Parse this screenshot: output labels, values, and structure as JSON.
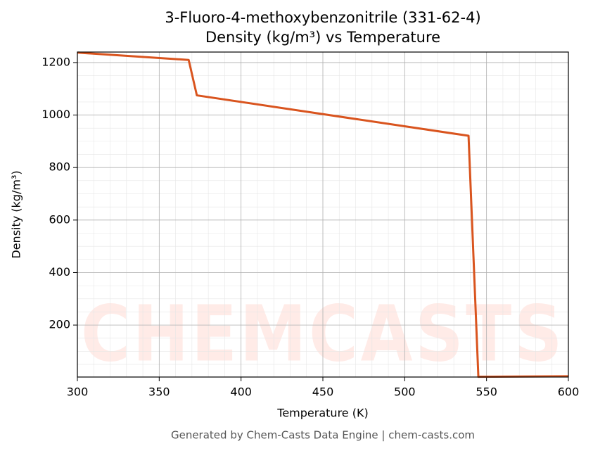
{
  "chart_data": {
    "type": "line",
    "title": "3-Fluoro-4-methoxybenzonitrile (331-62-4)",
    "subtitle": "Density (kg/m³) vs Temperature",
    "x_label": "Temperature (K)",
    "y_label": "Density (kg/m³)",
    "footer": "Generated by Chem-Casts Data Engine | chem-casts.com",
    "watermark": "CHEMCASTS",
    "x": [
      300,
      368,
      373,
      539,
      545,
      600
    ],
    "series": [
      {
        "name": "Density",
        "color": "#d9541e",
        "values": [
          1238,
          1210,
          1075,
          921,
          3,
          5
        ]
      }
    ],
    "xlim": [
      300,
      600
    ],
    "xticks": [
      300,
      350,
      400,
      450,
      500,
      550,
      600
    ],
    "ylim": [
      2,
      1240
    ],
    "yticks": [
      200,
      400,
      600,
      800,
      1000,
      1200
    ],
    "grid": true,
    "minor_grid": true
  }
}
